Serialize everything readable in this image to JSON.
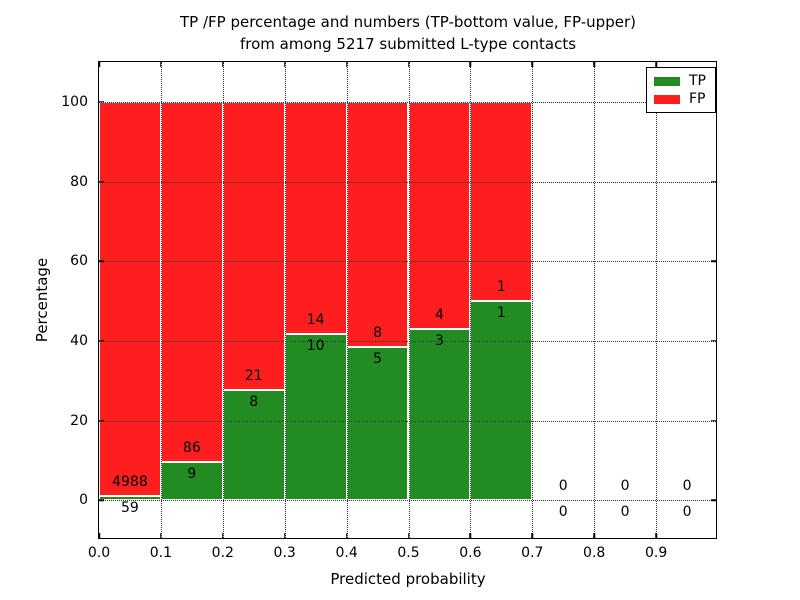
{
  "chart_data": {
    "type": "bar",
    "stacked": true,
    "title": "TP /FP percentage and numbers (TP-bottom value, FP-upper) from among 5217 submitted L-type contacts",
    "title_line1": "TP /FP percentage and numbers (TP-bottom value, FP-upper)",
    "title_line2": "from among 5217 submitted L-type contacts",
    "xlabel": "Predicted probability",
    "ylabel": "Percentage",
    "xlim": [
      0.0,
      1.0
    ],
    "ylim": [
      -10,
      110
    ],
    "x_ticks": [
      "0.0",
      "0.1",
      "0.2",
      "0.3",
      "0.4",
      "0.5",
      "0.6",
      "0.7",
      "0.8",
      "0.9"
    ],
    "y_ticks": [
      0,
      20,
      40,
      60,
      80,
      100
    ],
    "grid": "dotted",
    "grid_above_bars": true,
    "legend_position": "upper right",
    "total_submitted": 5217,
    "bins": [
      {
        "x_range": [
          0.0,
          0.1
        ],
        "tp_count": 59,
        "fp_count": 4988,
        "tp_pct": 1.17,
        "fp_pct": 98.83
      },
      {
        "x_range": [
          0.1,
          0.2
        ],
        "tp_count": 9,
        "fp_count": 86,
        "tp_pct": 9.47,
        "fp_pct": 90.53
      },
      {
        "x_range": [
          0.2,
          0.3
        ],
        "tp_count": 8,
        "fp_count": 21,
        "tp_pct": 27.59,
        "fp_pct": 72.41
      },
      {
        "x_range": [
          0.3,
          0.4
        ],
        "tp_count": 10,
        "fp_count": 14,
        "tp_pct": 41.67,
        "fp_pct": 58.33
      },
      {
        "x_range": [
          0.4,
          0.5
        ],
        "tp_count": 5,
        "fp_count": 8,
        "tp_pct": 38.46,
        "fp_pct": 61.54
      },
      {
        "x_range": [
          0.5,
          0.6
        ],
        "tp_count": 3,
        "fp_count": 4,
        "tp_pct": 42.86,
        "fp_pct": 57.14
      },
      {
        "x_range": [
          0.6,
          0.7
        ],
        "tp_count": 1,
        "fp_count": 1,
        "tp_pct": 50.0,
        "fp_pct": 50.0
      },
      {
        "x_range": [
          0.7,
          0.8
        ],
        "tp_count": 0,
        "fp_count": 0,
        "tp_pct": 0,
        "fp_pct": 0
      },
      {
        "x_range": [
          0.8,
          0.9
        ],
        "tp_count": 0,
        "fp_count": 0,
        "tp_pct": 0,
        "fp_pct": 0
      },
      {
        "x_range": [
          0.9,
          1.0
        ],
        "tp_count": 0,
        "fp_count": 0,
        "tp_pct": 0,
        "fp_pct": 0
      }
    ],
    "series": [
      {
        "name": "TP",
        "color": "#228b22",
        "values_pct": [
          1.17,
          9.47,
          27.59,
          41.67,
          38.46,
          42.86,
          50.0,
          0,
          0,
          0
        ]
      },
      {
        "name": "FP",
        "color": "#ff1f1f",
        "values_pct": [
          98.83,
          90.53,
          72.41,
          58.33,
          61.54,
          57.14,
          50.0,
          0,
          0,
          0
        ]
      }
    ],
    "colors": {
      "tp": "#228b22",
      "fp": "#ff1f1f",
      "bar_edge": "#ffffff",
      "grid": "#333333",
      "axis": "#000000"
    }
  },
  "legend": {
    "items": [
      {
        "label": "TP",
        "color": "#228b22"
      },
      {
        "label": "FP",
        "color": "#ff1f1f"
      }
    ]
  }
}
